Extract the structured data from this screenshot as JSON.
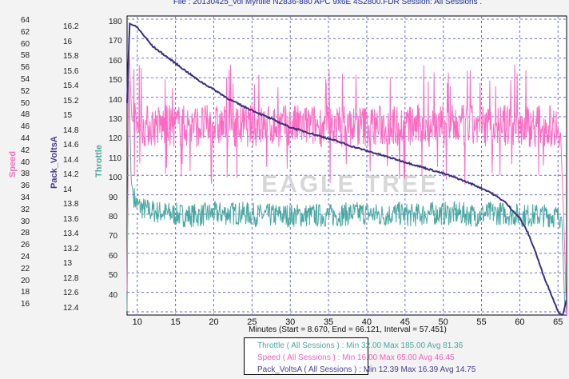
{
  "window": {
    "title": "File : 20130425_vol Myrtille N2836-880 APC 9x6E 4S2800.FDR   Session: All Sessions ."
  },
  "colors": {
    "speed": "#ff6ac1",
    "pack_volts": "#3b2f7f",
    "throttle": "#4aa8a2",
    "grid": "#6a6adf",
    "axis": "#000000"
  },
  "axes": {
    "speed_label": "Speed",
    "volts_label": "Pack_VoltsA",
    "throttle_label": "Throttle",
    "speed_ticks": [
      "64",
      "62",
      "60",
      "58",
      "56",
      "54",
      "52",
      "50",
      "48",
      "46",
      "44",
      "42",
      "40",
      "38",
      "36",
      "34",
      "32",
      "30",
      "28",
      "26",
      "24",
      "22",
      "20",
      "18",
      "16"
    ],
    "volts_ticks": [
      "16.2",
      "16",
      "15.8",
      "15.6",
      "15.4",
      "15.2",
      "15",
      "14.8",
      "14.6",
      "14.4",
      "14.2",
      "14",
      "13.8",
      "13.6",
      "13.4",
      "13.2",
      "13",
      "12.8",
      "12.6",
      "12.4"
    ],
    "throttle_ticks": [
      "180",
      "170",
      "160",
      "150",
      "140",
      "130",
      "120",
      "110",
      "100",
      "90",
      "80",
      "70",
      "60",
      "50",
      "40"
    ],
    "x_ticks": [
      "10",
      "15",
      "20",
      "25",
      "30",
      "35",
      "40",
      "45",
      "50",
      "55",
      "60",
      "65"
    ],
    "x_title": "Minutes (Start = 8.670,  End = 66.121,  Interval =  57.451)"
  },
  "legend": {
    "throttle": "Throttle  ( All Sessions ) : Min 32.00   Max 185.00   Avg 81.36",
    "speed": "Speed  ( All Sessions ) : Min 16.00   Max 65.00   Avg 46.45",
    "volts": "Pack_VoltsA  ( All Sessions ) : Min 12.39   Max 16.39   Avg 14.75"
  },
  "watermark": "EAGLE TREE",
  "chart_data": {
    "type": "line",
    "xlabel": "Minutes (Start = 8.670,  End = 66.121,  Interval =  57.451)",
    "x_range": [
      8.67,
      66.121
    ],
    "grid": true,
    "series": [
      {
        "name": "Throttle",
        "axis": "Throttle",
        "ylim": [
          33,
          183
        ],
        "points": [
          [
            8.67,
            35
          ],
          [
            8.9,
            155
          ],
          [
            9.2,
            100
          ],
          [
            9.6,
            92
          ],
          [
            10,
            88
          ],
          [
            11,
            86
          ],
          [
            12,
            85
          ],
          [
            14,
            84
          ],
          [
            16,
            83
          ],
          [
            18,
            83
          ],
          [
            20,
            84
          ],
          [
            22,
            84
          ],
          [
            24,
            84
          ],
          [
            26,
            83
          ],
          [
            28,
            83
          ],
          [
            30,
            83
          ],
          [
            32,
            83
          ],
          [
            34,
            83
          ],
          [
            36,
            83
          ],
          [
            38,
            84
          ],
          [
            40,
            84
          ],
          [
            42,
            83
          ],
          [
            44,
            84
          ],
          [
            46,
            83
          ],
          [
            48,
            84
          ],
          [
            50,
            84
          ],
          [
            52,
            84
          ],
          [
            54,
            83
          ],
          [
            56,
            84
          ],
          [
            58,
            84
          ],
          [
            60,
            83
          ],
          [
            62,
            83
          ],
          [
            64,
            83
          ],
          [
            65.5,
            82
          ],
          [
            65.9,
            35
          ]
        ]
      },
      {
        "name": "Speed",
        "axis": "Speed",
        "ylim": [
          16,
          65
        ],
        "points": [
          [
            8.67,
            20
          ],
          [
            8.9,
            60
          ],
          [
            9.3,
            48
          ],
          [
            10,
            47
          ],
          [
            12,
            47
          ],
          [
            15,
            47
          ],
          [
            20,
            47
          ],
          [
            25,
            47
          ],
          [
            30,
            47
          ],
          [
            35,
            47
          ],
          [
            40,
            47
          ],
          [
            45,
            47
          ],
          [
            50,
            47
          ],
          [
            55,
            47
          ],
          [
            60,
            47
          ],
          [
            63,
            47
          ],
          [
            65.3,
            47
          ],
          [
            65.8,
            30
          ],
          [
            66.1,
            16
          ]
        ]
      },
      {
        "name": "Pack_VoltsA",
        "axis": "Pack_VoltsA",
        "ylim": [
          12.4,
          16.35
        ],
        "points": [
          [
            8.67,
            15.2
          ],
          [
            9.0,
            16.25
          ],
          [
            10,
            16.2
          ],
          [
            12,
            15.95
          ],
          [
            14,
            15.8
          ],
          [
            16,
            15.65
          ],
          [
            18,
            15.5
          ],
          [
            20,
            15.38
          ],
          [
            22,
            15.25
          ],
          [
            24,
            15.15
          ],
          [
            26,
            15.06
          ],
          [
            28,
            14.97
          ],
          [
            30,
            14.88
          ],
          [
            32,
            14.82
          ],
          [
            34,
            14.76
          ],
          [
            36,
            14.7
          ],
          [
            38,
            14.63
          ],
          [
            40,
            14.57
          ],
          [
            42,
            14.51
          ],
          [
            44,
            14.45
          ],
          [
            46,
            14.39
          ],
          [
            48,
            14.33
          ],
          [
            50,
            14.27
          ],
          [
            52,
            14.2
          ],
          [
            54,
            14.12
          ],
          [
            56,
            14.03
          ],
          [
            58,
            13.9
          ],
          [
            60,
            13.68
          ],
          [
            61,
            13.5
          ],
          [
            62,
            13.25
          ],
          [
            63,
            12.95
          ],
          [
            64,
            12.7
          ],
          [
            65,
            12.45
          ],
          [
            65.6,
            12.39
          ],
          [
            66.1,
            12.6
          ]
        ]
      }
    ]
  }
}
